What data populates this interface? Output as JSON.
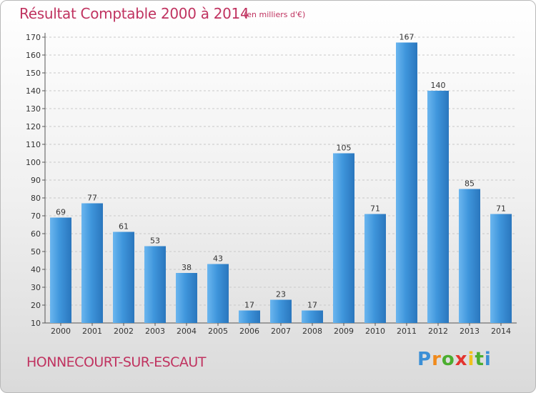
{
  "header": {
    "title": "Résultat Comptable 2000 à 2014",
    "unit": "(en milliers d'€)"
  },
  "footer": {
    "commune": "HONNECOURT-SUR-ESCAUT",
    "logo_letters": [
      "P",
      "r",
      "o",
      "x",
      "i",
      "t",
      "i"
    ],
    "logo_colors": [
      "#3b8fd6",
      "#f08a1c",
      "#4bae2f",
      "#e3342f",
      "#f0c21c",
      "#4bae2f",
      "#3b8fd6"
    ]
  },
  "chart_data": {
    "type": "bar",
    "title": "Résultat Comptable 2000 à 2014",
    "xlabel": "",
    "ylabel": "",
    "categories": [
      "2000",
      "2001",
      "2002",
      "2003",
      "2004",
      "2005",
      "2006",
      "2007",
      "2008",
      "2009",
      "2010",
      "2011",
      "2012",
      "2013",
      "2014"
    ],
    "values": [
      69,
      77,
      61,
      53,
      38,
      43,
      17,
      23,
      17,
      105,
      71,
      167,
      140,
      85,
      71
    ],
    "ylim": [
      10,
      170
    ],
    "yticks": [
      10,
      20,
      30,
      40,
      50,
      60,
      70,
      80,
      90,
      100,
      110,
      120,
      130,
      140,
      150,
      160,
      170
    ],
    "grid": true,
    "bar_color": "#3f96dc",
    "bar_color_light": "#6bb6ef",
    "bar_color_dark": "#2a76bd"
  }
}
